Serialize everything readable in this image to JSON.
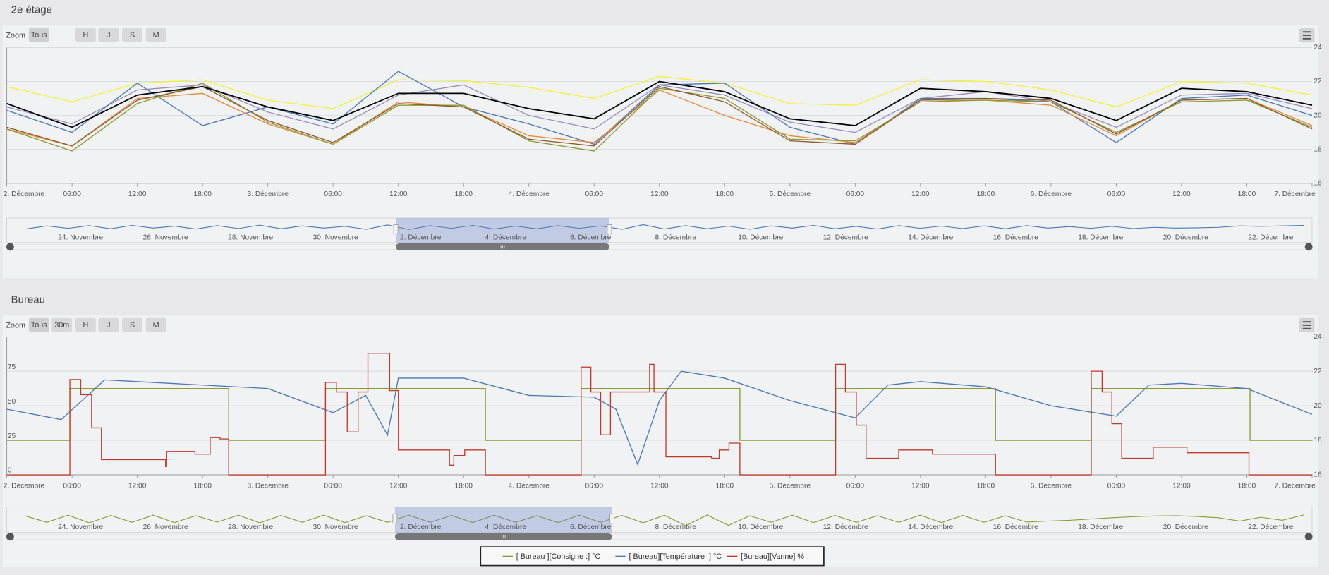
{
  "panels": [
    {
      "title": "2e étage",
      "zoom": {
        "label": "Zoom",
        "buttons": [
          "Tous",
          "H",
          "J",
          "S",
          "M"
        ]
      },
      "chart_data": {
        "type": "line",
        "xlim": [
          0,
          120
        ],
        "xticks": [
          {
            "value": 0,
            "label": "2. Décembre"
          },
          {
            "value": 6,
            "label": "06:00"
          },
          {
            "value": 12,
            "label": "12:00"
          },
          {
            "value": 18,
            "label": "18:00"
          },
          {
            "value": 24,
            "label": "3. Décembre"
          },
          {
            "value": 30,
            "label": "06:00"
          },
          {
            "value": 36,
            "label": "12:00"
          },
          {
            "value": 42,
            "label": "18:00"
          },
          {
            "value": 48,
            "label": "4. Décembre"
          },
          {
            "value": 54,
            "label": "06:00"
          },
          {
            "value": 60,
            "label": "12:00"
          },
          {
            "value": 66,
            "label": "18:00"
          },
          {
            "value": 72,
            "label": "5. Décembre"
          },
          {
            "value": 78,
            "label": "06:00"
          },
          {
            "value": 84,
            "label": "12:00"
          },
          {
            "value": 90,
            "label": "18:00"
          },
          {
            "value": 96,
            "label": "6. Décembre"
          },
          {
            "value": 102,
            "label": "06:00"
          },
          {
            "value": 108,
            "label": "12:00"
          },
          {
            "value": 114,
            "label": "18:00"
          },
          {
            "value": 120,
            "label": "7. Décembre"
          }
        ],
        "ylim": [
          16,
          24
        ],
        "yticks": [
          16,
          18,
          20,
          22,
          24
        ],
        "grid": true,
        "x": [
          0,
          6,
          12,
          18,
          24,
          30,
          36,
          42,
          48,
          54,
          60,
          66,
          72,
          78,
          84,
          90,
          96,
          102,
          108,
          114,
          120
        ],
        "series": [
          {
            "color": "#f2f23a",
            "values": [
              21.7,
              20.8,
              21.9,
              22.1,
              20.9,
              20.4,
              22.1,
              22.05,
              21.65,
              21.0,
              22.3,
              21.9,
              20.7,
              20.6,
              22.1,
              22.0,
              21.5,
              20.5,
              22.0,
              21.9,
              21.2
            ]
          },
          {
            "color": "#9a8cbc",
            "values": [
              20.5,
              19.5,
              21.5,
              21.8,
              20.2,
              19.2,
              21.2,
              21.8,
              20.0,
              19.2,
              21.8,
              21.2,
              19.6,
              19.0,
              21.0,
              21.4,
              20.8,
              19.3,
              21.2,
              21.3,
              20.4
            ]
          },
          {
            "color": "#4a78b5",
            "values": [
              20.3,
              19.0,
              21.9,
              19.4,
              20.5,
              19.5,
              22.6,
              20.5,
              19.5,
              18.3,
              21.8,
              21.9,
              19.3,
              18.3,
              21.0,
              21.0,
              20.8,
              18.4,
              21.0,
              21.2,
              20.0
            ]
          },
          {
            "color": "#e58a3c",
            "values": [
              19.2,
              18.2,
              21.0,
              21.3,
              19.5,
              18.3,
              20.8,
              20.5,
              18.8,
              18.4,
              21.5,
              20.0,
              18.8,
              18.4,
              20.9,
              20.9,
              20.6,
              18.8,
              20.9,
              21.0,
              19.4
            ]
          },
          {
            "color": "#8c9a30",
            "values": [
              19.2,
              17.9,
              20.7,
              21.9,
              19.6,
              18.3,
              20.6,
              20.6,
              18.5,
              17.9,
              21.6,
              21.0,
              18.6,
              18.5,
              20.8,
              20.9,
              20.8,
              19.0,
              20.8,
              20.9,
              19.3
            ]
          },
          {
            "color": "#8b5a2b",
            "values": [
              19.3,
              18.2,
              20.9,
              21.7,
              19.7,
              18.4,
              20.7,
              20.5,
              18.6,
              18.2,
              21.7,
              20.8,
              18.5,
              18.3,
              20.9,
              21.0,
              20.9,
              18.9,
              20.9,
              21.0,
              19.2
            ]
          },
          {
            "color": "#000000",
            "values": [
              20.7,
              19.3,
              21.2,
              21.7,
              20.5,
              19.7,
              21.3,
              21.3,
              20.4,
              19.8,
              22.0,
              21.4,
              19.8,
              19.4,
              21.6,
              21.4,
              21.0,
              19.7,
              21.6,
              21.4,
              20.6
            ]
          }
        ]
      },
      "navigator": {
        "color": "#4a78b5",
        "labels": [
          "24. Novembre",
          "26. Novembre",
          "28. Novembre",
          "30. Novembre",
          "2. Décembre",
          "4. Décembre",
          "6. Décembre",
          "8. Décembre",
          "10. Décembre",
          "12. Décembre",
          "14. Décembre",
          "16. Décembre",
          "18. Décembre",
          "20. Décembre",
          "22. Décembre"
        ],
        "values": [
          20.5,
          21.8,
          20.8,
          21.9,
          20.6,
          22.0,
          20.9,
          21.7,
          20.5,
          21.9,
          20.7,
          22.1,
          20.6,
          21.8,
          20.9,
          21.6,
          20.4,
          22.2,
          20.3,
          21.9,
          20.8,
          22.0,
          20.5,
          21.7,
          20.6,
          21.9,
          20.8,
          21.8,
          20.4,
          22.3,
          20.5,
          21.9,
          20.6,
          21.7,
          20.4,
          21.8,
          20.9,
          22.0,
          20.6,
          21.6,
          20.5,
          21.9,
          20.8,
          21.7,
          20.7,
          21.8,
          20.6,
          21.9,
          20.9,
          21.5,
          20.8,
          21.6,
          20.7,
          21.2,
          20.9,
          21.0,
          21.2,
          21.8,
          21.6,
          21.8,
          22.0
        ]
      }
    },
    {
      "title": "Bureau",
      "zoom": {
        "label": "Zoom",
        "buttons": [
          "Tous",
          "30m",
          "H",
          "J",
          "S",
          "M"
        ]
      },
      "chart_data": {
        "type": "line",
        "xlim": [
          0,
          120
        ],
        "xticks": [
          {
            "value": 0,
            "label": "2. Décembre"
          },
          {
            "value": 6,
            "label": "06:00"
          },
          {
            "value": 12,
            "label": "12:00"
          },
          {
            "value": 18,
            "label": "18:00"
          },
          {
            "value": 24,
            "label": "3. Décembre"
          },
          {
            "value": 30,
            "label": "06:00"
          },
          {
            "value": 36,
            "label": "12:00"
          },
          {
            "value": 42,
            "label": "18:00"
          },
          {
            "value": 48,
            "label": "4. Décembre"
          },
          {
            "value": 54,
            "label": "06:00"
          },
          {
            "value": 60,
            "label": "12:00"
          },
          {
            "value": 66,
            "label": "18:00"
          },
          {
            "value": 72,
            "label": "5. Décembre"
          },
          {
            "value": 78,
            "label": "06:00"
          },
          {
            "value": 84,
            "label": "12:00"
          },
          {
            "value": 90,
            "label": "18:00"
          },
          {
            "value": 96,
            "label": "6. Décembre"
          },
          {
            "value": 102,
            "label": "06:00"
          },
          {
            "value": 108,
            "label": "12:00"
          },
          {
            "value": 114,
            "label": "18:00"
          },
          {
            "value": 120,
            "label": "7. Décembre"
          }
        ],
        "ylim": [
          0,
          100
        ],
        "yticks": [
          0,
          25,
          50,
          75
        ],
        "y2lim": [
          16,
          24
        ],
        "y2ticks": [
          16,
          18,
          20,
          22,
          24
        ],
        "grid": true,
        "series": [
          {
            "name": "[  Bureau ][Consigne :] °C",
            "color": "#8c9a30",
            "axis": "y2",
            "step": true,
            "x": [
              0,
              5.8,
              20.4,
              29.3,
              44,
              52.8,
              67.4,
              76.2,
              90.9,
              99.7,
              114.3,
              120
            ],
            "values": [
              18,
              21,
              18,
              21,
              18,
              21,
              18,
              21,
              18,
              21,
              18,
              18
            ]
          },
          {
            "name": "[ Bureau][Température :] °C",
            "color": "#4a78b5",
            "axis": "y2",
            "x": [
              0,
              5,
              9,
              12,
              18,
              24,
              30,
              33,
              35,
              36,
              42,
              48,
              54,
              56,
              58,
              60,
              62,
              66,
              72,
              78,
              81,
              84,
              90,
              96,
              102,
              105,
              108,
              114,
              120
            ],
            "values": [
              19.8,
              19.2,
              21.5,
              21.4,
              21.2,
              21.0,
              19.6,
              20.6,
              18.3,
              21.6,
              21.6,
              20.6,
              20.5,
              19.8,
              16.6,
              20.3,
              22.0,
              21.6,
              20.3,
              19.3,
              21.2,
              21.4,
              21.1,
              20.0,
              19.4,
              21.2,
              21.3,
              21.0,
              19.5
            ]
          },
          {
            "name": "[Bureau][Vanne] %",
            "color": "#c0392b",
            "step": true,
            "x": [
              0,
              5.8,
              6.8,
              7.8,
              8.7,
              14.6,
              14.7,
              17.3,
              18.7,
              19.6,
              20.4,
              29.3,
              30.3,
              31.3,
              32.3,
              33.2,
              35.2,
              36.0,
              40.7,
              41.1,
              42.1,
              44.0,
              52.8,
              53.7,
              54.6,
              55.5,
              59.1,
              59.5,
              60.6,
              64.8,
              65.5,
              66.4,
              67.4,
              76.2,
              77.1,
              78.1,
              79.0,
              82.0,
              85.1,
              90.9,
              99.7,
              100.7,
              101.6,
              102.5,
              105.4,
              108.5,
              114.2,
              120
            ],
            "values": [
              0,
              69,
              58,
              34,
              11,
              6,
              17,
              15,
              27,
              26,
              0,
              67,
              60,
              31,
              60,
              88,
              61,
              18,
              7,
              14,
              18,
              0,
              78,
              60,
              29,
              60,
              80,
              60,
              13,
              12,
              18,
              23,
              0,
              80,
              60,
              36,
              12,
              18,
              15,
              0,
              75,
              60,
              37,
              12,
              20,
              16,
              0,
              0
            ]
          }
        ]
      },
      "navigator": {
        "color": "#8c9a30",
        "axis": "y2",
        "labels": [
          "24. Novembre",
          "26. Novembre",
          "28. Novembre",
          "30. Novembre",
          "2. Décembre",
          "4. Décembre",
          "6. Décembre",
          "8. Décembre",
          "10. Décembre",
          "12. Décembre",
          "14. Décembre",
          "16. Décembre",
          "18. Décembre",
          "20. Décembre",
          "22. Décembre"
        ],
        "values": [
          21.5,
          19.0,
          21.8,
          18.8,
          21.7,
          19.0,
          21.8,
          18.9,
          21.6,
          19.1,
          21.8,
          18.8,
          21.7,
          19.0,
          21.8,
          18.9,
          21.6,
          19.0,
          21.8,
          19.0,
          21.7,
          18.9,
          21.8,
          19.0,
          21.6,
          18.9,
          21.8,
          19.0,
          21.7,
          18.8,
          21.8,
          17.6,
          21.9,
          17.8,
          21.6,
          19.0,
          21.8,
          18.9,
          21.7,
          19.0,
          21.6,
          19.0,
          21.8,
          18.9,
          21.7,
          19.0,
          21.6,
          19.1,
          19.5,
          19.8,
          20.3,
          20.8,
          21.2,
          21.5,
          21.6,
          21.3,
          20.8,
          19.5,
          21.0,
          19.8,
          21.9
        ]
      }
    }
  ]
}
